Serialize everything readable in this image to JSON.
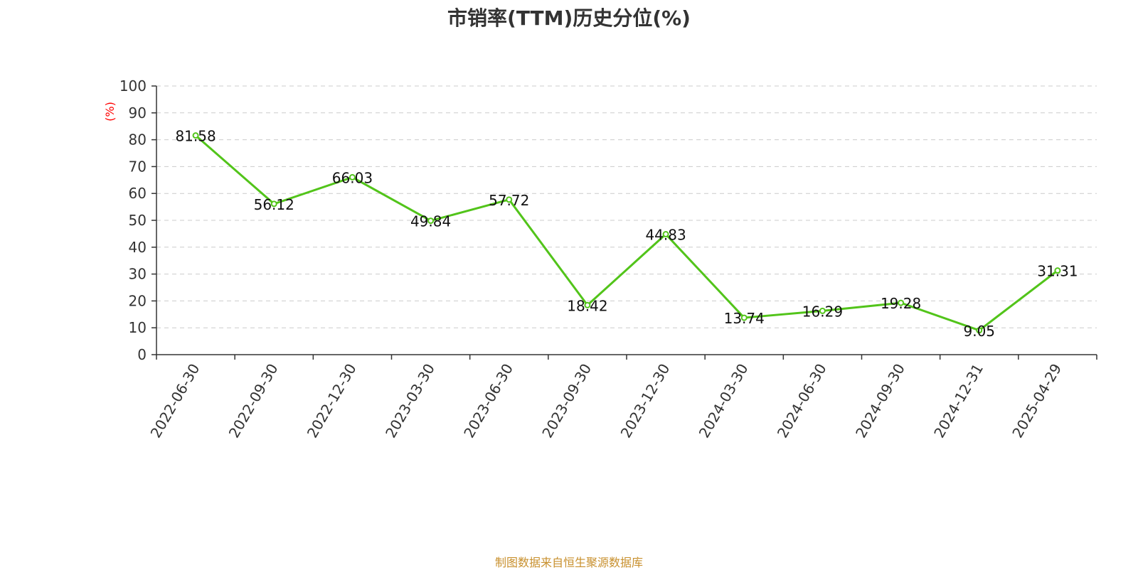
{
  "chart_data": {
    "type": "line",
    "title": "市销率(TTM)历史分位(%)",
    "ylabel": "(%)",
    "xlabel": "",
    "ylim": [
      0,
      100
    ],
    "yticks": [
      "0",
      "10",
      "20",
      "30",
      "40",
      "50",
      "60",
      "70",
      "80",
      "90",
      "100"
    ],
    "grid": true,
    "categories": [
      "2022-06-30",
      "2022-09-30",
      "2022-12-30",
      "2023-03-30",
      "2023-06-30",
      "2023-09-30",
      "2023-12-30",
      "2024-03-30",
      "2024-06-30",
      "2024-09-30",
      "2024-12-31",
      "2025-04-29"
    ],
    "series": [
      {
        "values": [
          81.58,
          56.12,
          66.03,
          49.84,
          57.72,
          18.42,
          44.83,
          13.74,
          16.29,
          19.28,
          9.05,
          31.31
        ],
        "labels": [
          "81.58",
          "56.12",
          "66.03",
          "49.84",
          "57.72",
          "18.42",
          "44.83",
          "13.74",
          "16.29",
          "19.28",
          "9.05",
          "31.31"
        ],
        "color": "#52c41a"
      }
    ]
  },
  "colors": {
    "axis": "#333333",
    "grid": "#cccccc",
    "ylabel": "#ff0000",
    "source": "#c8902e"
  },
  "footer": {
    "source": "制图数据来自恒生聚源数据库"
  }
}
